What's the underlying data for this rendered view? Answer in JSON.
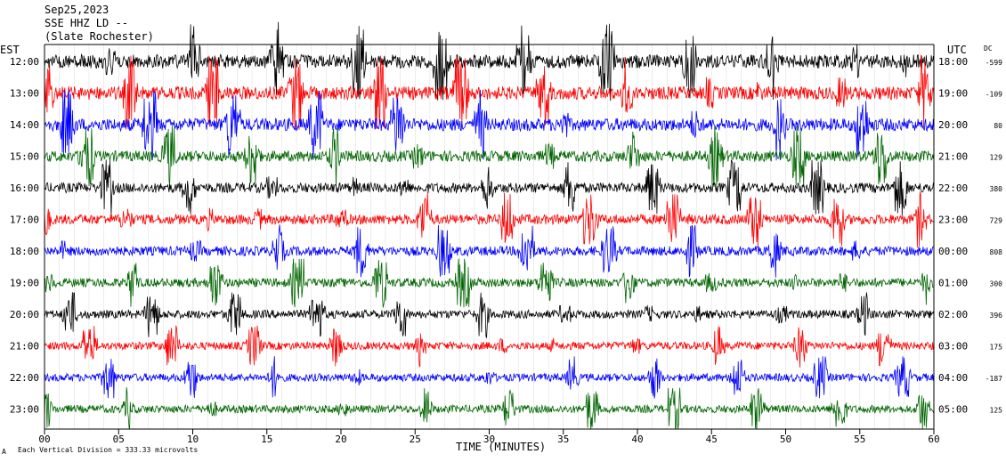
{
  "header": {
    "date": "Sep25,2023",
    "channel": "SSE HHZ LD --",
    "location": "(Slate Rochester)"
  },
  "left_zone_label": "EST",
  "right_zone_label": "UTC",
  "dc_label": "DC",
  "footer": {
    "x_axis_title": "TIME (MINUTES)",
    "scale_note": "Each Vertical Division =  333.33 microvolts",
    "corner_mark": "A"
  },
  "chart_data": {
    "type": "line",
    "xlabel": "TIME (MINUTES)",
    "xlim": [
      0,
      60
    ],
    "x_ticks": [
      "00",
      "05",
      "10",
      "15",
      "20",
      "25",
      "30",
      "35",
      "40",
      "45",
      "50",
      "55",
      "60"
    ],
    "trace_colors": [
      "#000000",
      "#ff0000",
      "#0000ff",
      "#006600"
    ],
    "rows": [
      {
        "est": "12:00",
        "utc": "18:00",
        "dc": "-599",
        "color": "#000000",
        "activity": 0.95
      },
      {
        "est": "13:00",
        "utc": "19:00",
        "dc": "-109",
        "color": "#ff0000",
        "activity": 0.9
      },
      {
        "est": "14:00",
        "utc": "20:00",
        "dc": "80",
        "color": "#0000ff",
        "activity": 0.85
      },
      {
        "est": "15:00",
        "utc": "21:00",
        "dc": "129",
        "color": "#006600",
        "activity": 0.7
      },
      {
        "est": "16:00",
        "utc": "22:00",
        "dc": "380",
        "color": "#000000",
        "activity": 0.6
      },
      {
        "est": "17:00",
        "utc": "23:00",
        "dc": "729",
        "color": "#ff0000",
        "activity": 0.6
      },
      {
        "est": "18:00",
        "utc": "00:00",
        "dc": "808",
        "color": "#0000ff",
        "activity": 0.55
      },
      {
        "est": "19:00",
        "utc": "01:00",
        "dc": "300",
        "color": "#006600",
        "activity": 0.5
      },
      {
        "est": "20:00",
        "utc": "02:00",
        "dc": "396",
        "color": "#000000",
        "activity": 0.45
      },
      {
        "est": "21:00",
        "utc": "03:00",
        "dc": "175",
        "color": "#ff0000",
        "activity": 0.4
      },
      {
        "est": "22:00",
        "utc": "04:00",
        "dc": "-187",
        "color": "#0000ff",
        "activity": 0.4
      },
      {
        "est": "23:00",
        "utc": "05:00",
        "dc": "125",
        "color": "#006600",
        "activity": 0.4
      }
    ]
  }
}
